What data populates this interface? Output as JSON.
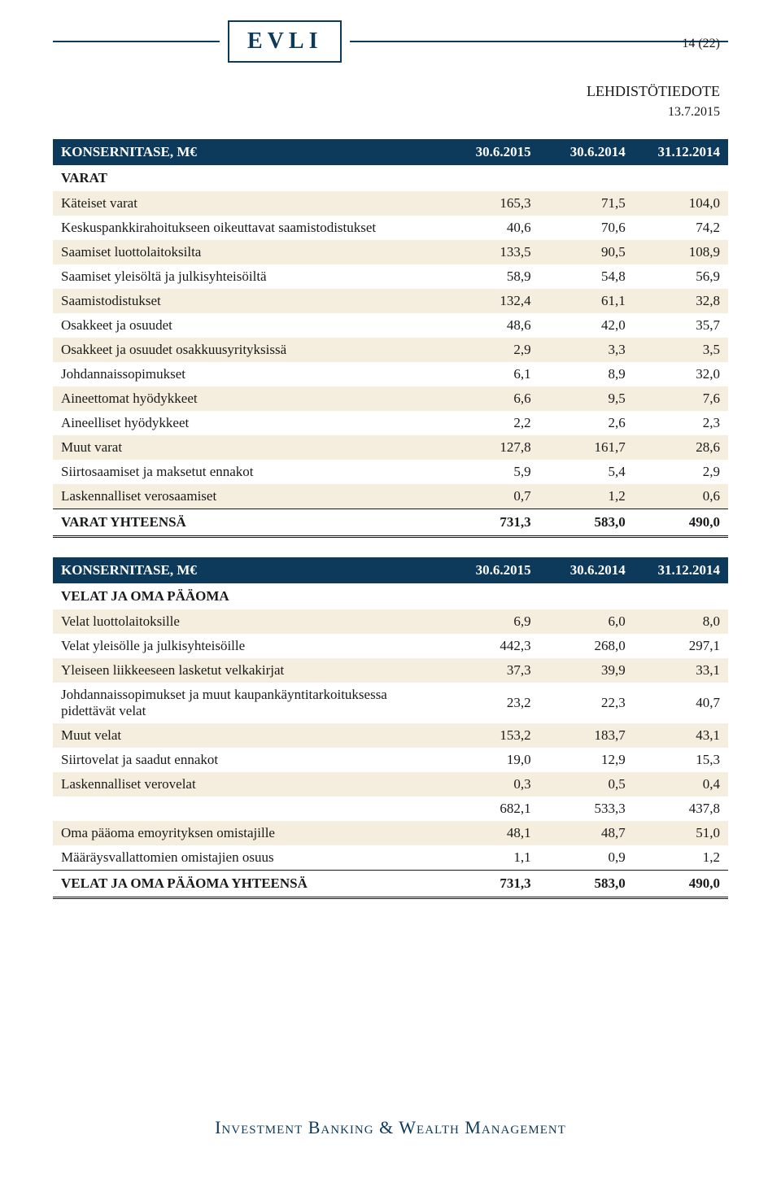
{
  "page_number": "14 (22)",
  "logo": "EVLI",
  "doc_title": "LEHDISTÖTIEDOTE",
  "doc_date": "13.7.2015",
  "footer": "Investment Banking & Wealth Management",
  "col_headers": [
    "30.6.2015",
    "30.6.2014",
    "31.12.2014"
  ],
  "colors": {
    "header_band": "#0d3a5a",
    "stripe": "#f5eede",
    "rule": "#0d3a5a",
    "text": "#1a1a1a"
  },
  "table1": {
    "title": "KONSERNITASE, M€",
    "section": "VARAT",
    "rows": [
      {
        "label": "Käteiset varat",
        "v": [
          "165,3",
          "71,5",
          "104,0"
        ]
      },
      {
        "label": "Keskuspankkirahoitukseen oikeuttavat saamistodistukset",
        "v": [
          "40,6",
          "70,6",
          "74,2"
        ]
      },
      {
        "label": "Saamiset luottolaitoksilta",
        "v": [
          "133,5",
          "90,5",
          "108,9"
        ]
      },
      {
        "label": "Saamiset yleisöltä ja julkisyhteisöiltä",
        "v": [
          "58,9",
          "54,8",
          "56,9"
        ]
      },
      {
        "label": "Saamistodistukset",
        "v": [
          "132,4",
          "61,1",
          "32,8"
        ]
      },
      {
        "label": "Osakkeet ja osuudet",
        "v": [
          "48,6",
          "42,0",
          "35,7"
        ]
      },
      {
        "label": "Osakkeet ja osuudet osakkuusyrityksissä",
        "v": [
          "2,9",
          "3,3",
          "3,5"
        ]
      },
      {
        "label": "Johdannaissopimukset",
        "v": [
          "6,1",
          "8,9",
          "32,0"
        ]
      },
      {
        "label": "Aineettomat hyödykkeet",
        "v": [
          "6,6",
          "9,5",
          "7,6"
        ]
      },
      {
        "label": "Aineelliset hyödykkeet",
        "v": [
          "2,2",
          "2,6",
          "2,3"
        ]
      },
      {
        "label": "Muut varat",
        "v": [
          "127,8",
          "161,7",
          "28,6"
        ]
      },
      {
        "label": "Siirtosaamiset ja maksetut ennakot",
        "v": [
          "5,9",
          "5,4",
          "2,9"
        ]
      },
      {
        "label": "Laskennalliset verosaamiset",
        "v": [
          "0,7",
          "1,2",
          "0,6"
        ]
      }
    ],
    "total": {
      "label": "VARAT YHTEENSÄ",
      "v": [
        "731,3",
        "583,0",
        "490,0"
      ]
    }
  },
  "table2": {
    "title": "KONSERNITASE, M€",
    "section": "VELAT JA OMA PÄÄOMA",
    "rows": [
      {
        "label": "Velat luottolaitoksille",
        "v": [
          "6,9",
          "6,0",
          "8,0"
        ]
      },
      {
        "label": "Velat yleisölle ja julkisyhteisöille",
        "v": [
          "442,3",
          "268,0",
          "297,1"
        ]
      },
      {
        "label": "Yleiseen liikkeeseen lasketut velkakirjat",
        "v": [
          "37,3",
          "39,9",
          "33,1"
        ]
      },
      {
        "label": "Johdannaissopimukset ja muut kaupankäyntitarkoituksessa pidettävät velat",
        "v": [
          "23,2",
          "22,3",
          "40,7"
        ]
      },
      {
        "label": "Muut velat",
        "v": [
          "153,2",
          "183,7",
          "43,1"
        ]
      },
      {
        "label": "Siirtovelat ja saadut ennakot",
        "v": [
          "19,0",
          "12,9",
          "15,3"
        ]
      },
      {
        "label": "Laskennalliset verovelat",
        "v": [
          "0,3",
          "0,5",
          "0,4"
        ]
      }
    ],
    "subtotal": {
      "label": "",
      "v": [
        "682,1",
        "533,3",
        "437,8"
      ]
    },
    "rows2": [
      {
        "label": "Oma pääoma emoyrityksen omistajille",
        "v": [
          "48,1",
          "48,7",
          "51,0"
        ]
      },
      {
        "label": "Määräysvallattomien omistajien osuus",
        "v": [
          "1,1",
          "0,9",
          "1,2"
        ]
      }
    ],
    "total": {
      "label": "VELAT JA OMA PÄÄOMA YHTEENSÄ",
      "v": [
        "731,3",
        "583,0",
        "490,0"
      ]
    }
  }
}
